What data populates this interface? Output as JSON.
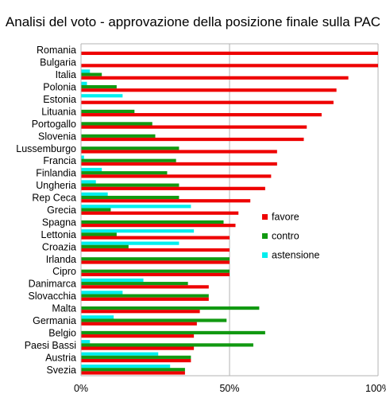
{
  "chart_data": {
    "type": "bar",
    "orientation": "horizontal",
    "title": "Analisi del voto - approvazione della posizione finale sulla PAC",
    "categories": [
      "Romania",
      "Bulgaria",
      "Italia",
      "Polonia",
      "Estonia",
      "Lituania",
      "Portogallo",
      "Slovenia",
      "Lussemburgo",
      "Francia",
      "Finlandia",
      "Ungheria",
      "Rep Ceca",
      "Grecia",
      "Spagna",
      "Lettonia",
      "Croazia",
      "Irlanda",
      "Cipro",
      "Danimarca",
      "Slovacchia",
      "Malta",
      "Germania",
      "Belgio",
      "Paesi Bassi",
      "Austria",
      "Svezia"
    ],
    "series": [
      {
        "name": "favore",
        "color": "#ee0000",
        "values": [
          100,
          100,
          90,
          86,
          85,
          81,
          76,
          75,
          66,
          66,
          64,
          62,
          57,
          53,
          52,
          50,
          50,
          50,
          50,
          43,
          43,
          40,
          39,
          38,
          38,
          37,
          35
        ]
      },
      {
        "name": "contro",
        "color": "#119911",
        "values": [
          0,
          0,
          7,
          12,
          0,
          18,
          24,
          25,
          33,
          32,
          29,
          33,
          33,
          10,
          48,
          12,
          16,
          50,
          50,
          36,
          43,
          60,
          49,
          62,
          58,
          37,
          35
        ]
      },
      {
        "name": "astensione",
        "color": "#00eeee",
        "values": [
          0,
          0,
          3,
          2,
          14,
          0,
          0,
          0,
          0,
          1,
          7,
          5,
          9,
          37,
          0,
          38,
          33,
          0,
          0,
          21,
          14,
          0,
          11,
          0,
          3,
          26,
          30
        ]
      }
    ],
    "xlim": [
      0,
      100
    ],
    "x_ticks": [
      "0%",
      "50%",
      "100%"
    ],
    "grid": "vertical",
    "legend_position": "right"
  }
}
